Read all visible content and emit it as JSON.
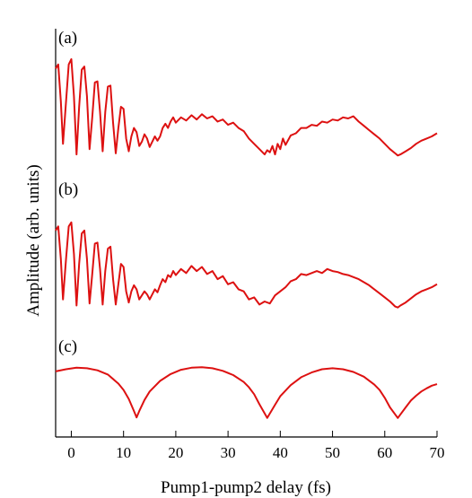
{
  "chart_data": {
    "type": "line",
    "xlabel": "Pump1-pump2 delay (fs)",
    "ylabel": "Amplitude (arb. units)",
    "xlim": [
      -3,
      70
    ],
    "xticks": [
      0,
      10,
      20,
      30,
      40,
      50,
      60,
      70
    ],
    "tick_labels": [
      "0",
      "10",
      "20",
      "30",
      "40",
      "50",
      "60",
      "70"
    ],
    "grid": false,
    "line_color": "#dd1111",
    "panels": [
      {
        "label": "(a)",
        "ylim": [
          0,
          1
        ],
        "points": [
          [
            -3,
            0.86
          ],
          [
            -2.5,
            0.9
          ],
          [
            -2,
            0.55
          ],
          [
            -1.6,
            0.15
          ],
          [
            -1,
            0.55
          ],
          [
            -0.5,
            0.9
          ],
          [
            0,
            0.95
          ],
          [
            0.5,
            0.6
          ],
          [
            1,
            0.05
          ],
          [
            1.5,
            0.5
          ],
          [
            2,
            0.85
          ],
          [
            2.5,
            0.88
          ],
          [
            3,
            0.6
          ],
          [
            3.5,
            0.1
          ],
          [
            4,
            0.4
          ],
          [
            4.5,
            0.73
          ],
          [
            5,
            0.74
          ],
          [
            5.5,
            0.45
          ],
          [
            6,
            0.08
          ],
          [
            6.5,
            0.45
          ],
          [
            7,
            0.69
          ],
          [
            7.5,
            0.7
          ],
          [
            8,
            0.35
          ],
          [
            8.5,
            0.06
          ],
          [
            9,
            0.3
          ],
          [
            9.5,
            0.5
          ],
          [
            10,
            0.48
          ],
          [
            10.5,
            0.2
          ],
          [
            11,
            0.08
          ],
          [
            11.5,
            0.22
          ],
          [
            12,
            0.3
          ],
          [
            12.5,
            0.26
          ],
          [
            13,
            0.13
          ],
          [
            13.5,
            0.17
          ],
          [
            14,
            0.24
          ],
          [
            14.5,
            0.2
          ],
          [
            15,
            0.12
          ],
          [
            15.5,
            0.17
          ],
          [
            16,
            0.22
          ],
          [
            16.5,
            0.18
          ],
          [
            17,
            0.22
          ],
          [
            17.5,
            0.3
          ],
          [
            18,
            0.34
          ],
          [
            18.5,
            0.3
          ],
          [
            19,
            0.36
          ],
          [
            19.5,
            0.4
          ],
          [
            20,
            0.35
          ],
          [
            21,
            0.4
          ],
          [
            22,
            0.37
          ],
          [
            23,
            0.42
          ],
          [
            24,
            0.38
          ],
          [
            25,
            0.43
          ],
          [
            26,
            0.39
          ],
          [
            27,
            0.41
          ],
          [
            28,
            0.36
          ],
          [
            29,
            0.38
          ],
          [
            30,
            0.33
          ],
          [
            31,
            0.35
          ],
          [
            32,
            0.3
          ],
          [
            33,
            0.27
          ],
          [
            34,
            0.2
          ],
          [
            35,
            0.15
          ],
          [
            36,
            0.1
          ],
          [
            37,
            0.05
          ],
          [
            37.5,
            0.09
          ],
          [
            38,
            0.07
          ],
          [
            38.5,
            0.13
          ],
          [
            39,
            0.05
          ],
          [
            39.5,
            0.15
          ],
          [
            40,
            0.1
          ],
          [
            40.5,
            0.2
          ],
          [
            41,
            0.14
          ],
          [
            42,
            0.23
          ],
          [
            43,
            0.25
          ],
          [
            44,
            0.3
          ],
          [
            45,
            0.3
          ],
          [
            46,
            0.33
          ],
          [
            47,
            0.32
          ],
          [
            48,
            0.36
          ],
          [
            49,
            0.35
          ],
          [
            50,
            0.38
          ],
          [
            51,
            0.37
          ],
          [
            52,
            0.4
          ],
          [
            53,
            0.39
          ],
          [
            54,
            0.41
          ],
          [
            55,
            0.36
          ],
          [
            56,
            0.32
          ],
          [
            57,
            0.28
          ],
          [
            58,
            0.24
          ],
          [
            59,
            0.2
          ],
          [
            60,
            0.15
          ],
          [
            61,
            0.1
          ],
          [
            62,
            0.06
          ],
          [
            62.5,
            0.04
          ],
          [
            63,
            0.05
          ],
          [
            64,
            0.08
          ],
          [
            65,
            0.11
          ],
          [
            66,
            0.15
          ],
          [
            67,
            0.18
          ],
          [
            68,
            0.2
          ],
          [
            69,
            0.22
          ],
          [
            70,
            0.25
          ]
        ]
      },
      {
        "label": "(b)",
        "ylim": [
          0,
          1
        ],
        "points": [
          [
            -3,
            0.78
          ],
          [
            -2.5,
            0.82
          ],
          [
            -2,
            0.5
          ],
          [
            -1.6,
            0.1
          ],
          [
            -1,
            0.5
          ],
          [
            -0.5,
            0.82
          ],
          [
            0,
            0.86
          ],
          [
            0.5,
            0.55
          ],
          [
            1,
            0.04
          ],
          [
            1.5,
            0.45
          ],
          [
            2,
            0.75
          ],
          [
            2.5,
            0.78
          ],
          [
            3,
            0.5
          ],
          [
            3.5,
            0.06
          ],
          [
            4,
            0.35
          ],
          [
            4.5,
            0.65
          ],
          [
            5,
            0.66
          ],
          [
            5.5,
            0.4
          ],
          [
            6,
            0.05
          ],
          [
            6.5,
            0.38
          ],
          [
            7,
            0.6
          ],
          [
            7.5,
            0.62
          ],
          [
            8,
            0.3
          ],
          [
            8.5,
            0.05
          ],
          [
            9,
            0.25
          ],
          [
            9.5,
            0.45
          ],
          [
            10,
            0.42
          ],
          [
            10.5,
            0.18
          ],
          [
            11,
            0.07
          ],
          [
            11.5,
            0.18
          ],
          [
            12,
            0.24
          ],
          [
            12.5,
            0.2
          ],
          [
            13,
            0.1
          ],
          [
            13.5,
            0.14
          ],
          [
            14,
            0.18
          ],
          [
            14.5,
            0.15
          ],
          [
            15,
            0.1
          ],
          [
            15.5,
            0.15
          ],
          [
            16,
            0.2
          ],
          [
            16.5,
            0.17
          ],
          [
            17,
            0.24
          ],
          [
            17.5,
            0.3
          ],
          [
            18,
            0.27
          ],
          [
            18.5,
            0.34
          ],
          [
            19,
            0.32
          ],
          [
            19.5,
            0.38
          ],
          [
            20,
            0.34
          ],
          [
            21,
            0.4
          ],
          [
            22,
            0.36
          ],
          [
            23,
            0.43
          ],
          [
            24,
            0.38
          ],
          [
            25,
            0.42
          ],
          [
            26,
            0.35
          ],
          [
            27,
            0.38
          ],
          [
            28,
            0.3
          ],
          [
            29,
            0.33
          ],
          [
            30,
            0.25
          ],
          [
            31,
            0.27
          ],
          [
            32,
            0.2
          ],
          [
            33,
            0.18
          ],
          [
            34,
            0.1
          ],
          [
            35,
            0.12
          ],
          [
            36,
            0.05
          ],
          [
            37,
            0.08
          ],
          [
            38,
            0.06
          ],
          [
            39,
            0.14
          ],
          [
            40,
            0.18
          ],
          [
            41,
            0.22
          ],
          [
            42,
            0.28
          ],
          [
            43,
            0.3
          ],
          [
            44,
            0.35
          ],
          [
            45,
            0.34
          ],
          [
            46,
            0.36
          ],
          [
            47,
            0.38
          ],
          [
            48,
            0.36
          ],
          [
            49,
            0.4
          ],
          [
            50,
            0.38
          ],
          [
            51,
            0.37
          ],
          [
            52,
            0.35
          ],
          [
            53,
            0.34
          ],
          [
            54,
            0.32
          ],
          [
            55,
            0.3
          ],
          [
            56,
            0.27
          ],
          [
            57,
            0.24
          ],
          [
            58,
            0.2
          ],
          [
            59,
            0.16
          ],
          [
            60,
            0.12
          ],
          [
            61,
            0.08
          ],
          [
            62,
            0.03
          ],
          [
            62.5,
            0.02
          ],
          [
            63,
            0.04
          ],
          [
            64,
            0.07
          ],
          [
            65,
            0.11
          ],
          [
            66,
            0.15
          ],
          [
            67,
            0.18
          ],
          [
            68,
            0.2
          ],
          [
            69,
            0.22
          ],
          [
            70,
            0.25
          ]
        ]
      },
      {
        "label": "(c)",
        "ylim": [
          0,
          1
        ],
        "points": [
          [
            -3,
            0.9
          ],
          [
            -1,
            0.94
          ],
          [
            1,
            0.97
          ],
          [
            3,
            0.96
          ],
          [
            5,
            0.92
          ],
          [
            7,
            0.84
          ],
          [
            9,
            0.67
          ],
          [
            10,
            0.55
          ],
          [
            11,
            0.38
          ],
          [
            12,
            0.15
          ],
          [
            12.5,
            0.03
          ],
          [
            13,
            0.15
          ],
          [
            14,
            0.36
          ],
          [
            15,
            0.52
          ],
          [
            17,
            0.72
          ],
          [
            19,
            0.85
          ],
          [
            21,
            0.93
          ],
          [
            23,
            0.97
          ],
          [
            25,
            0.98
          ],
          [
            27,
            0.96
          ],
          [
            29,
            0.91
          ],
          [
            31,
            0.83
          ],
          [
            33,
            0.7
          ],
          [
            34,
            0.6
          ],
          [
            35,
            0.47
          ],
          [
            36,
            0.28
          ],
          [
            37.5,
            0.02
          ],
          [
            39,
            0.27
          ],
          [
            40,
            0.43
          ],
          [
            42,
            0.64
          ],
          [
            44,
            0.79
          ],
          [
            46,
            0.88
          ],
          [
            48,
            0.94
          ],
          [
            50,
            0.96
          ],
          [
            52,
            0.94
          ],
          [
            54,
            0.89
          ],
          [
            56,
            0.8
          ],
          [
            58,
            0.65
          ],
          [
            59,
            0.55
          ],
          [
            60,
            0.4
          ],
          [
            61,
            0.22
          ],
          [
            62.5,
            0.02
          ],
          [
            64,
            0.22
          ],
          [
            65,
            0.35
          ],
          [
            66,
            0.44
          ],
          [
            67,
            0.52
          ],
          [
            68,
            0.58
          ],
          [
            69,
            0.63
          ],
          [
            70,
            0.66
          ]
        ]
      }
    ]
  }
}
